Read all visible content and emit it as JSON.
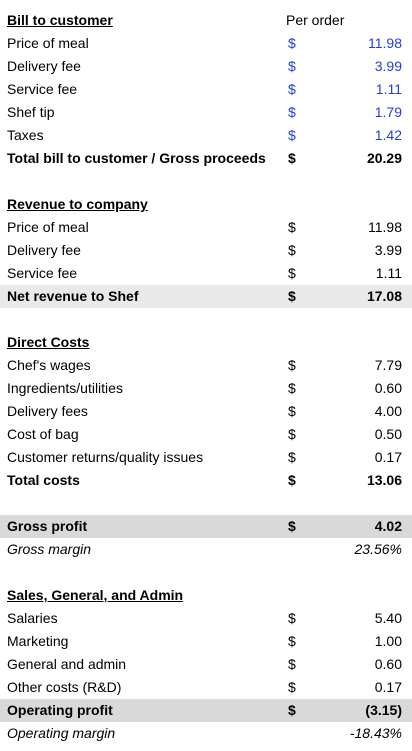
{
  "bill": {
    "header": "Bill to customer",
    "column_header": "Per order",
    "rows": [
      {
        "label": "Price of meal",
        "currency": "$",
        "value": "11.98"
      },
      {
        "label": "Delivery fee",
        "currency": "$",
        "value": "3.99"
      },
      {
        "label": "Service fee",
        "currency": "$",
        "value": "1.11"
      },
      {
        "label": "Shef tip",
        "currency": "$",
        "value": "1.79"
      },
      {
        "label": "Taxes",
        "currency": "$",
        "value": "1.42"
      }
    ],
    "total": {
      "label": "Total bill to customer / Gross proceeds",
      "currency": "$",
      "value": "20.29"
    }
  },
  "revenue": {
    "header": "Revenue to company",
    "rows": [
      {
        "label": "Price of meal",
        "currency": "$",
        "value": "11.98"
      },
      {
        "label": "Delivery fee",
        "currency": "$",
        "value": "3.99"
      },
      {
        "label": "Service fee",
        "currency": "$",
        "value": "1.11"
      }
    ],
    "total": {
      "label": "Net revenue to Shef",
      "currency": "$",
      "value": "17.08"
    }
  },
  "direct_costs": {
    "header": "Direct Costs",
    "rows": [
      {
        "label": "Chef's wages",
        "currency": "$",
        "value": "7.79"
      },
      {
        "label": "Ingredients/utilities",
        "currency": "$",
        "value": "0.60"
      },
      {
        "label": "Delivery fees",
        "currency": "$",
        "value": "4.00"
      },
      {
        "label": "Cost of bag",
        "currency": "$",
        "value": "0.50"
      },
      {
        "label": "Customer returns/quality issues",
        "currency": "$",
        "value": "0.17"
      }
    ],
    "total": {
      "label": "Total costs",
      "currency": "$",
      "value": "13.06"
    }
  },
  "gross": {
    "profit": {
      "label": "Gross profit",
      "currency": "$",
      "value": "4.02"
    },
    "margin": {
      "label": "Gross margin",
      "value": "23.56%"
    }
  },
  "sga": {
    "header": "Sales, General, and Admin",
    "rows": [
      {
        "label": "Salaries",
        "currency": "$",
        "value": "5.40"
      },
      {
        "label": "Marketing",
        "currency": "$",
        "value": "1.00"
      },
      {
        "label": "General and admin",
        "currency": "$",
        "value": "0.60"
      },
      {
        "label": "Other costs (R&D)",
        "currency": "$",
        "value": "0.17"
      }
    ]
  },
  "operating": {
    "profit": {
      "label": "Operating profit",
      "currency": "$",
      "value": "(3.15)"
    },
    "margin": {
      "label": "Operating margin",
      "value": "-18.43%"
    }
  },
  "colors": {
    "input_blue": "#1f3fe0",
    "total_shade": "#e9e9e9",
    "profit_shade": "#d9d9d9"
  }
}
